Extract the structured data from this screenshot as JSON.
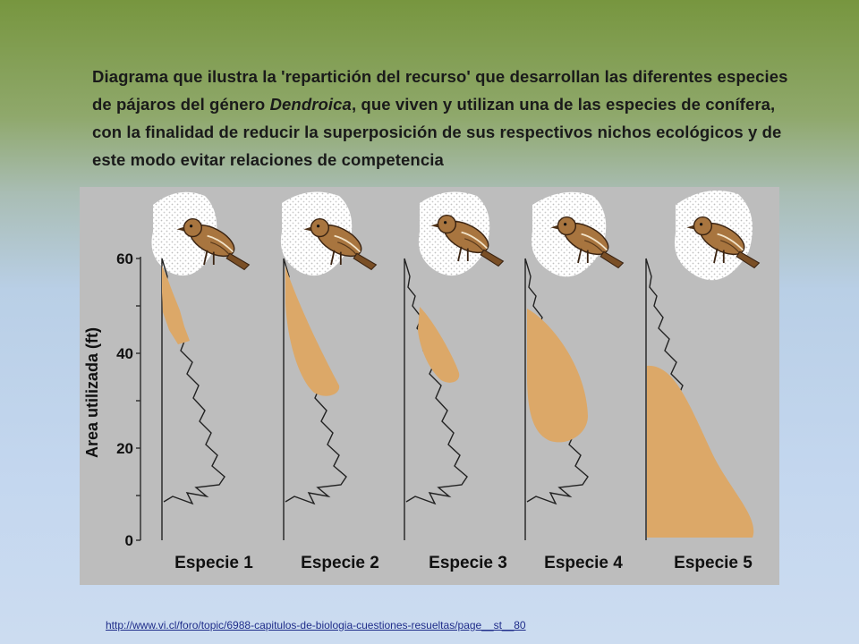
{
  "caption": {
    "part1": "Diagrama que ilustra la 'repartición del recurso' que desarrollan las diferentes especies de pájaros del género ",
    "genus": "Dendroica",
    "part2": ", que viven y utilizan una de las especies de conífera, con la finalidad de reducir la superposición de sus respectivos nichos ecológicos y de este modo evitar relaciones de competencia"
  },
  "diagram": {
    "y_axis_label": "Area utilizada (ft)",
    "y_ticks": [
      "60",
      "40",
      "20",
      "0"
    ],
    "panels": [
      {
        "label": "Especie 1",
        "zone_ft": [
          42,
          60
        ]
      },
      {
        "label": "Especie 2",
        "zone_ft": [
          30,
          58
        ]
      },
      {
        "label": "Especie 3",
        "zone_ft": [
          33,
          49
        ]
      },
      {
        "label": "Especie 4",
        "zone_ft": [
          20,
          49
        ]
      },
      {
        "label": "Especie 5",
        "zone_ft": [
          0,
          37
        ]
      }
    ],
    "colors": {
      "zone": "#dca868",
      "tree": "#222222",
      "panel": "#bdbdbd"
    }
  },
  "source_url": "http://www.vi.cl/foro/topic/6988-capitulos-de-biologia-cuestiones-resueltas/page__st__80"
}
